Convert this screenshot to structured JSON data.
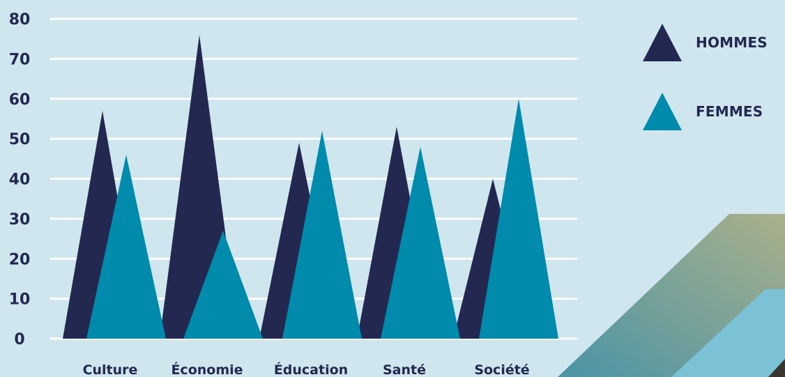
{
  "chart_data": {
    "type": "area",
    "categories": [
      "Culture",
      "Économie",
      "Éducation",
      "Santé",
      "Société"
    ],
    "series": [
      {
        "name": "HOMMES",
        "color": "#22284f",
        "values": [
          57,
          76,
          49,
          53,
          40
        ]
      },
      {
        "name": "FEMMES",
        "color": "#008aab",
        "values": [
          46,
          27,
          52,
          48,
          60
        ]
      }
    ],
    "yticks": [
      0,
      10,
      20,
      30,
      40,
      50,
      60,
      70,
      80
    ],
    "ylim": [
      0,
      80
    ],
    "grid": true,
    "legend_position": "top-right"
  },
  "legend": {
    "hommes": "HOMMES",
    "femmes": "FEMMES"
  },
  "colors": {
    "background": "#cfe6ee",
    "gridline": "#ffffff",
    "decor_band_start": "#4a93a6",
    "decor_band_end": "#a9b08a",
    "decor_light": "#7bc2d6"
  }
}
